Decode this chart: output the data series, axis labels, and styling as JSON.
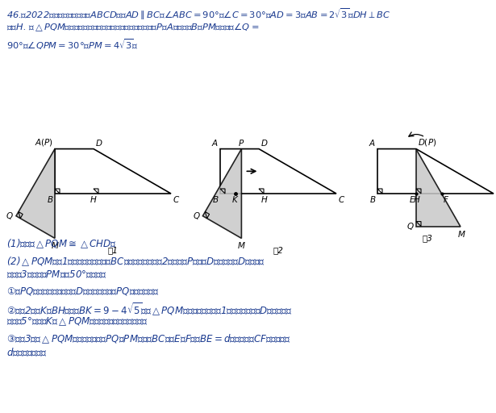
{
  "bg_color": "#ffffff",
  "text_color": "#1a3a8f",
  "shape_fill": "#c8c8c8",
  "shape_edge": "#000000",
  "fig1_label": "图1",
  "fig2_label": "图2",
  "fig3_label": "图3",
  "scale": 16,
  "title_lines": [
    "46.（2022河北）如图，四边形$ABCD$中，$AD$$\\parallel$$BC$，$\\angle ABC=90°$，$\\angle C=30°$，$AD=3$，$AB=2\\sqrt{3}$，$DH\\perp BC$",
    "于点$H$. 将$\\triangle PQM$与该四边形按如图方式放在同一平面内，使点$P$与$A$重合，点$B$在$PM$上，其中$\\angle Q=$",
    "$90°$，$\\angle QPM=30°$，$PM=4\\sqrt{3}$．"
  ],
  "prob1": "(1)求证：$\\triangle PQM$$\\cong$$\\triangle CHD$；",
  "prob2a": "(2)$\\triangle PQM$从图1的位置出发，先沿着$BC$方向向右平移（图2），当点$P$到达点$D$后立刻绕点$D$逆时针旋",
  "prob2b": "转（图3），当边$PM$旋转50°时停止．",
  "sub1": "①边$PQ$从平移开始，到绕点$D$旋转结束，求边$PQ$扫过的面积；",
  "sub2a": "②如图2，点$K$在$BH$上，且$BK=9-4\\sqrt{5}$．若$\\triangle PQM$右移的速度为每秒1个单位长，绕点$D$旋转的速度",
  "sub2b": "为每秒5°，求点$K$在$\\triangle PQM$区域（含边界）内的时长；",
  "sub3a": "③如图3，在$\\triangle PQM$旋转过程中，设$PQ$、$PM$分别交$BC$于点$E$、$F$，若$BE=d$，直接写出$CF$的长（用含",
  "sub3b": "$d$的式子表示）．"
}
